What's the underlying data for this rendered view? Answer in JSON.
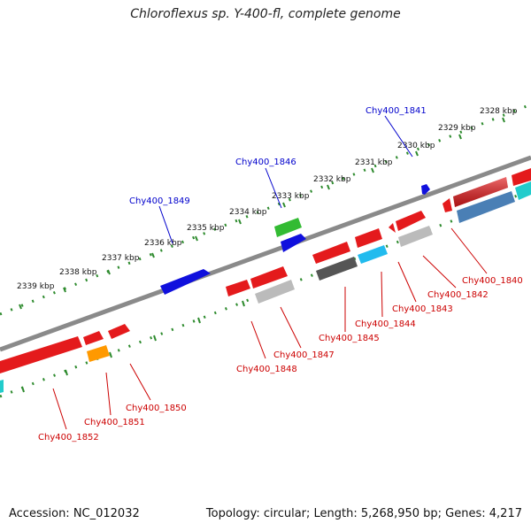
{
  "title": "Chloroflexus sp. Y-400-fl, complete genome",
  "footer": {
    "accession": "Accession: NC_012032",
    "summary": "Topology: circular; Length: 5,268,950 bp; Genes: 4,217"
  },
  "colors": {
    "backbone": "#8a8a8a",
    "ruler": "#2e8b2e",
    "forward_label": "#0000cc",
    "reverse_label": "#cc0000",
    "red": "#e41a1c",
    "blue": "#1010dd",
    "green": "#33bb33",
    "grey_dark": "#555555",
    "grey_light": "#bbbbbb",
    "cyan": "#22bbee",
    "steel": "#4a7fb5",
    "orange": "#ff9900",
    "teal": "#22cccc"
  },
  "ruler_labels": [
    "2328 kbp",
    "2329 kbp",
    "2330 kbp",
    "2331 kbp",
    "2332 kbp",
    "2333 kbp",
    "2334 kbp",
    "2335 kbp",
    "2336 kbp",
    "2337 kbp",
    "2338 kbp",
    "2339 kbp"
  ],
  "gene_labels": [
    "Chy400_1841",
    "Chy400_1846",
    "Chy400_1849",
    "Chy400_1840",
    "Chy400_1842",
    "Chy400_1843",
    "Chy400_1844",
    "Chy400_1845",
    "Chy400_1847",
    "Chy400_1848",
    "Chy400_1850",
    "Chy400_1851",
    "Chy400_1852"
  ]
}
